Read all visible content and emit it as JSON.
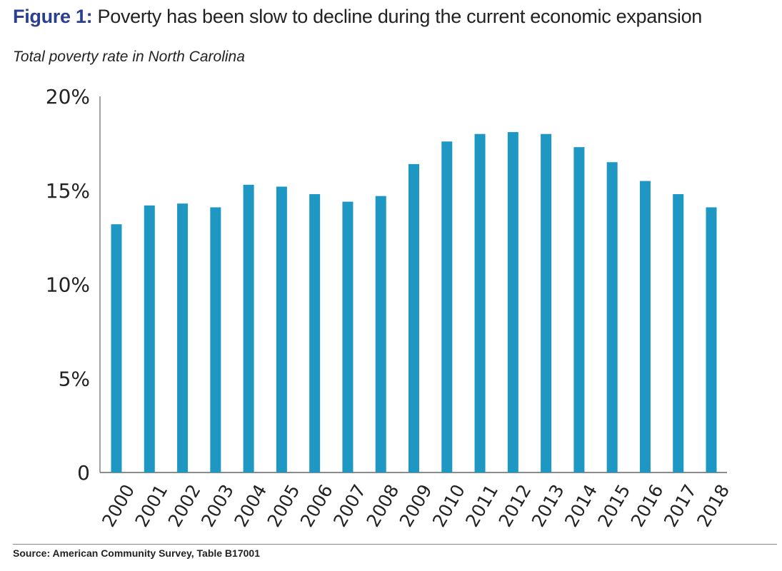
{
  "title": {
    "prefix": "Figure 1:",
    "text": " Poverty has been slow to decline during the current economic expansion"
  },
  "subtitle": "Total poverty rate in North Carolina",
  "source": "Source: American Community Survey, Table B17001",
  "colors": {
    "bar": "#1f97c3",
    "title_prefix": "#2b3f8f"
  },
  "chart_data": {
    "type": "bar",
    "title": "Poverty has been slow to decline during the current economic expansion",
    "subtitle": "Total poverty rate in North Carolina",
    "categories": [
      "2000",
      "2001",
      "2002",
      "2003",
      "2004",
      "2005",
      "2006",
      "2007",
      "2008",
      "2009",
      "2010",
      "2011",
      "2012",
      "2013",
      "2014",
      "2015",
      "2016",
      "2017",
      "2018"
    ],
    "values": [
      13.2,
      14.2,
      14.3,
      14.1,
      15.3,
      15.2,
      14.8,
      14.4,
      14.7,
      16.4,
      17.6,
      18.0,
      18.1,
      18.0,
      17.3,
      16.5,
      15.5,
      14.8,
      14.1
    ],
    "ylim": [
      0,
      20
    ],
    "yticks": [
      0,
      5,
      10,
      15,
      20
    ],
    "ytick_labels": [
      "0",
      "5%",
      "10%",
      "15%",
      "20%"
    ],
    "grid": false,
    "xlabel": "",
    "ylabel": ""
  }
}
